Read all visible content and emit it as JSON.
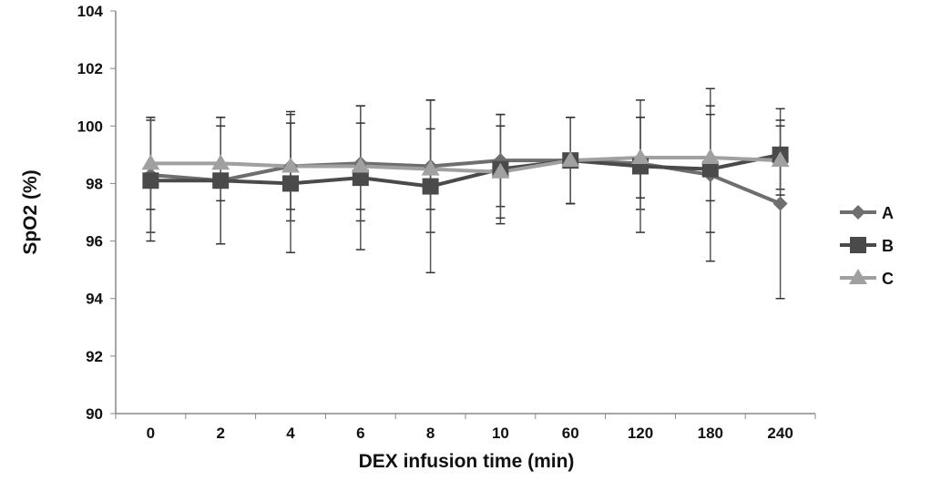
{
  "chart_data": {
    "type": "line",
    "title": "",
    "xlabel": "DEX infusion time (min)",
    "ylabel": "SpO2 (%)",
    "categories": [
      "0",
      "2",
      "4",
      "6",
      "8",
      "10",
      "60",
      "120",
      "180",
      "240"
    ],
    "ylim": [
      90,
      104
    ],
    "yticks": [
      90,
      92,
      94,
      96,
      98,
      100,
      102,
      104
    ],
    "grid": false,
    "legend": "right",
    "series": [
      {
        "name": "A",
        "marker": "diamond",
        "color": "#6e6e6e",
        "values": [
          98.3,
          98.1,
          98.6,
          98.7,
          98.6,
          98.8,
          98.8,
          98.7,
          98.3,
          97.3
        ],
        "error": [
          2.0,
          2.2,
          1.9,
          2.0,
          2.3,
          1.6,
          1.5,
          1.6,
          3.0,
          3.3
        ]
      },
      {
        "name": "B",
        "marker": "square",
        "color": "#4a4a4a",
        "values": [
          98.1,
          98.1,
          98.0,
          98.2,
          97.9,
          98.5,
          98.8,
          98.6,
          98.5,
          99.0
        ],
        "error": [
          2.1,
          2.2,
          2.4,
          2.5,
          3.0,
          1.9,
          1.5,
          2.3,
          2.2,
          1.2
        ]
      },
      {
        "name": "C",
        "marker": "triangle",
        "color": "#a0a0a0",
        "values": [
          98.7,
          98.7,
          98.6,
          98.6,
          98.5,
          98.4,
          98.8,
          98.9,
          98.9,
          98.8
        ],
        "error": [
          1.6,
          1.3,
          1.5,
          1.5,
          1.4,
          1.6,
          1.5,
          1.4,
          1.5,
          1.2
        ]
      }
    ]
  }
}
